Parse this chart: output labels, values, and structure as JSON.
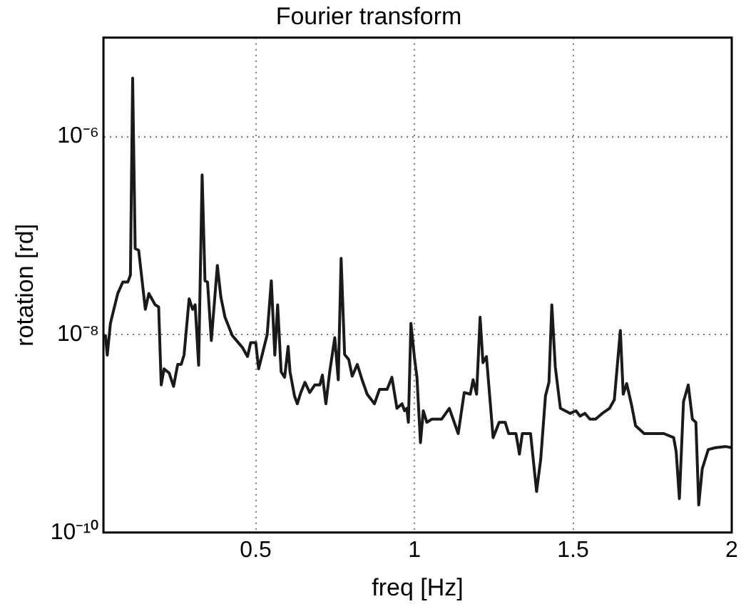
{
  "chart_data": {
    "type": "line",
    "title": "Fourier transform",
    "xlabel": "freq [Hz]",
    "ylabel": "rotation [rd]",
    "log": "y",
    "grid": true,
    "legend": false,
    "marker": "none",
    "line_style": "solid",
    "xlim": [
      0.02,
      2
    ],
    "xticks": [
      0.5,
      1,
      1.5,
      2
    ],
    "ylim": [
      1e-10,
      1e-05
    ],
    "yticks": [
      {
        "value": 1e-10,
        "label": "10⁻¹⁰"
      },
      {
        "value": 1e-08,
        "label": "10⁻⁸"
      },
      {
        "value": 1e-06,
        "label": "10⁻⁶"
      }
    ],
    "series": [
      {
        "color": "#1a1a1a",
        "x": [
          0.026,
          0.032,
          0.042,
          0.065,
          0.081,
          0.097,
          0.105,
          0.112,
          0.12,
          0.131,
          0.152,
          0.163,
          0.183,
          0.194,
          0.202,
          0.211,
          0.227,
          0.241,
          0.254,
          0.265,
          0.274,
          0.29,
          0.301,
          0.309,
          0.32,
          0.331,
          0.34,
          0.348,
          0.36,
          0.379,
          0.39,
          0.403,
          0.426,
          0.458,
          0.474,
          0.484,
          0.5,
          0.509,
          0.536,
          0.549,
          0.56,
          0.569,
          0.58,
          0.591,
          0.602,
          0.608,
          0.622,
          0.631,
          0.642,
          0.655,
          0.67,
          0.686,
          0.702,
          0.71,
          0.721,
          0.733,
          0.749,
          0.76,
          0.769,
          0.78,
          0.793,
          0.804,
          0.82,
          0.835,
          0.851,
          0.874,
          0.89,
          0.914,
          0.929,
          0.945,
          0.961,
          0.969,
          0.976,
          0.981,
          0.989,
          1.0,
          1.008,
          1.019,
          1.028,
          1.039,
          1.055,
          1.086,
          1.11,
          1.138,
          1.157,
          1.176,
          1.185,
          1.196,
          1.207,
          1.216,
          1.227,
          1.248,
          1.267,
          1.286,
          1.297,
          1.32,
          1.331,
          1.34,
          1.366,
          1.385,
          1.398,
          1.413,
          1.424,
          1.433,
          1.444,
          1.46,
          1.475,
          1.491,
          1.509,
          1.522,
          1.537,
          1.553,
          1.571,
          1.592,
          1.615,
          1.63,
          1.649,
          1.658,
          1.669,
          1.685,
          1.697,
          1.724,
          1.755,
          1.786,
          1.817,
          1.825,
          1.835,
          1.848,
          1.863,
          1.876,
          1.887,
          1.896,
          1.907,
          1.926,
          1.949,
          1.98,
          2.0
        ],
        "values": [
          1e-08,
          6.2e-09,
          1.3e-08,
          2.6e-08,
          3.4e-08,
          3.4e-08,
          4e-08,
          3.9e-06,
          7.4e-08,
          7.1e-08,
          1.8e-08,
          2.6e-08,
          2e-08,
          1.9e-08,
          3.1e-09,
          4.5e-09,
          4.1e-09,
          3e-09,
          5e-09,
          5e-09,
          6.2e-09,
          2.3e-08,
          1.8e-08,
          2e-08,
          4.9e-09,
          4.1e-07,
          3.5e-08,
          3.4e-08,
          8.7e-09,
          5e-08,
          2.4e-08,
          1.5e-08,
          9.8e-09,
          7.4e-09,
          6e-09,
          8.3e-09,
          8.3e-09,
          4.5e-09,
          1e-08,
          3.5e-08,
          6.2e-09,
          2e-08,
          4.2e-09,
          3.7e-09,
          7.6e-09,
          4.2e-09,
          2.4e-09,
          2e-09,
          2.6e-09,
          3.3e-09,
          2.6e-09,
          3.1e-09,
          3.1e-09,
          3.9e-09,
          2e-09,
          4.2e-09,
          9.3e-09,
          3.5e-09,
          5.9e-08,
          6.3e-09,
          5.6e-09,
          3.8e-09,
          5e-09,
          3.5e-09,
          2.5e-09,
          2e-09,
          2.8e-09,
          2.8e-09,
          3.7e-09,
          1.8e-09,
          2e-09,
          1.7e-09,
          1.8e-09,
          1.3e-09,
          1.3e-08,
          5.9e-09,
          3.7e-09,
          8.1e-10,
          1.7e-09,
          1.3e-09,
          1.4e-09,
          1.4e-09,
          1.8e-09,
          1e-09,
          2.6e-09,
          2.5e-09,
          3.5e-09,
          2.5e-09,
          1.5e-08,
          5.2e-09,
          6e-09,
          9.1e-10,
          1.3e-09,
          1.3e-09,
          1e-09,
          1e-09,
          6.2e-10,
          1e-09,
          1e-09,
          2.6e-10,
          5.5e-10,
          2.4e-09,
          3.3e-09,
          2e-08,
          4.7e-09,
          1.8e-09,
          1.7e-09,
          1.6e-09,
          1.7e-09,
          1.5e-09,
          1.6e-09,
          1.4e-09,
          1.4e-09,
          1.6e-09,
          1.8e-09,
          2.2e-09,
          1.1e-08,
          2.5e-09,
          3.2e-09,
          1.9e-09,
          1.2e-09,
          1e-09,
          1e-09,
          1e-09,
          9.1e-10,
          6.5e-10,
          2.2e-10,
          2.1e-09,
          3.1e-09,
          1.4e-09,
          1.3e-09,
          1.9e-10,
          4.4e-10,
          6.9e-10,
          7.2e-10,
          7.4e-10,
          7.2e-10
        ]
      }
    ]
  }
}
